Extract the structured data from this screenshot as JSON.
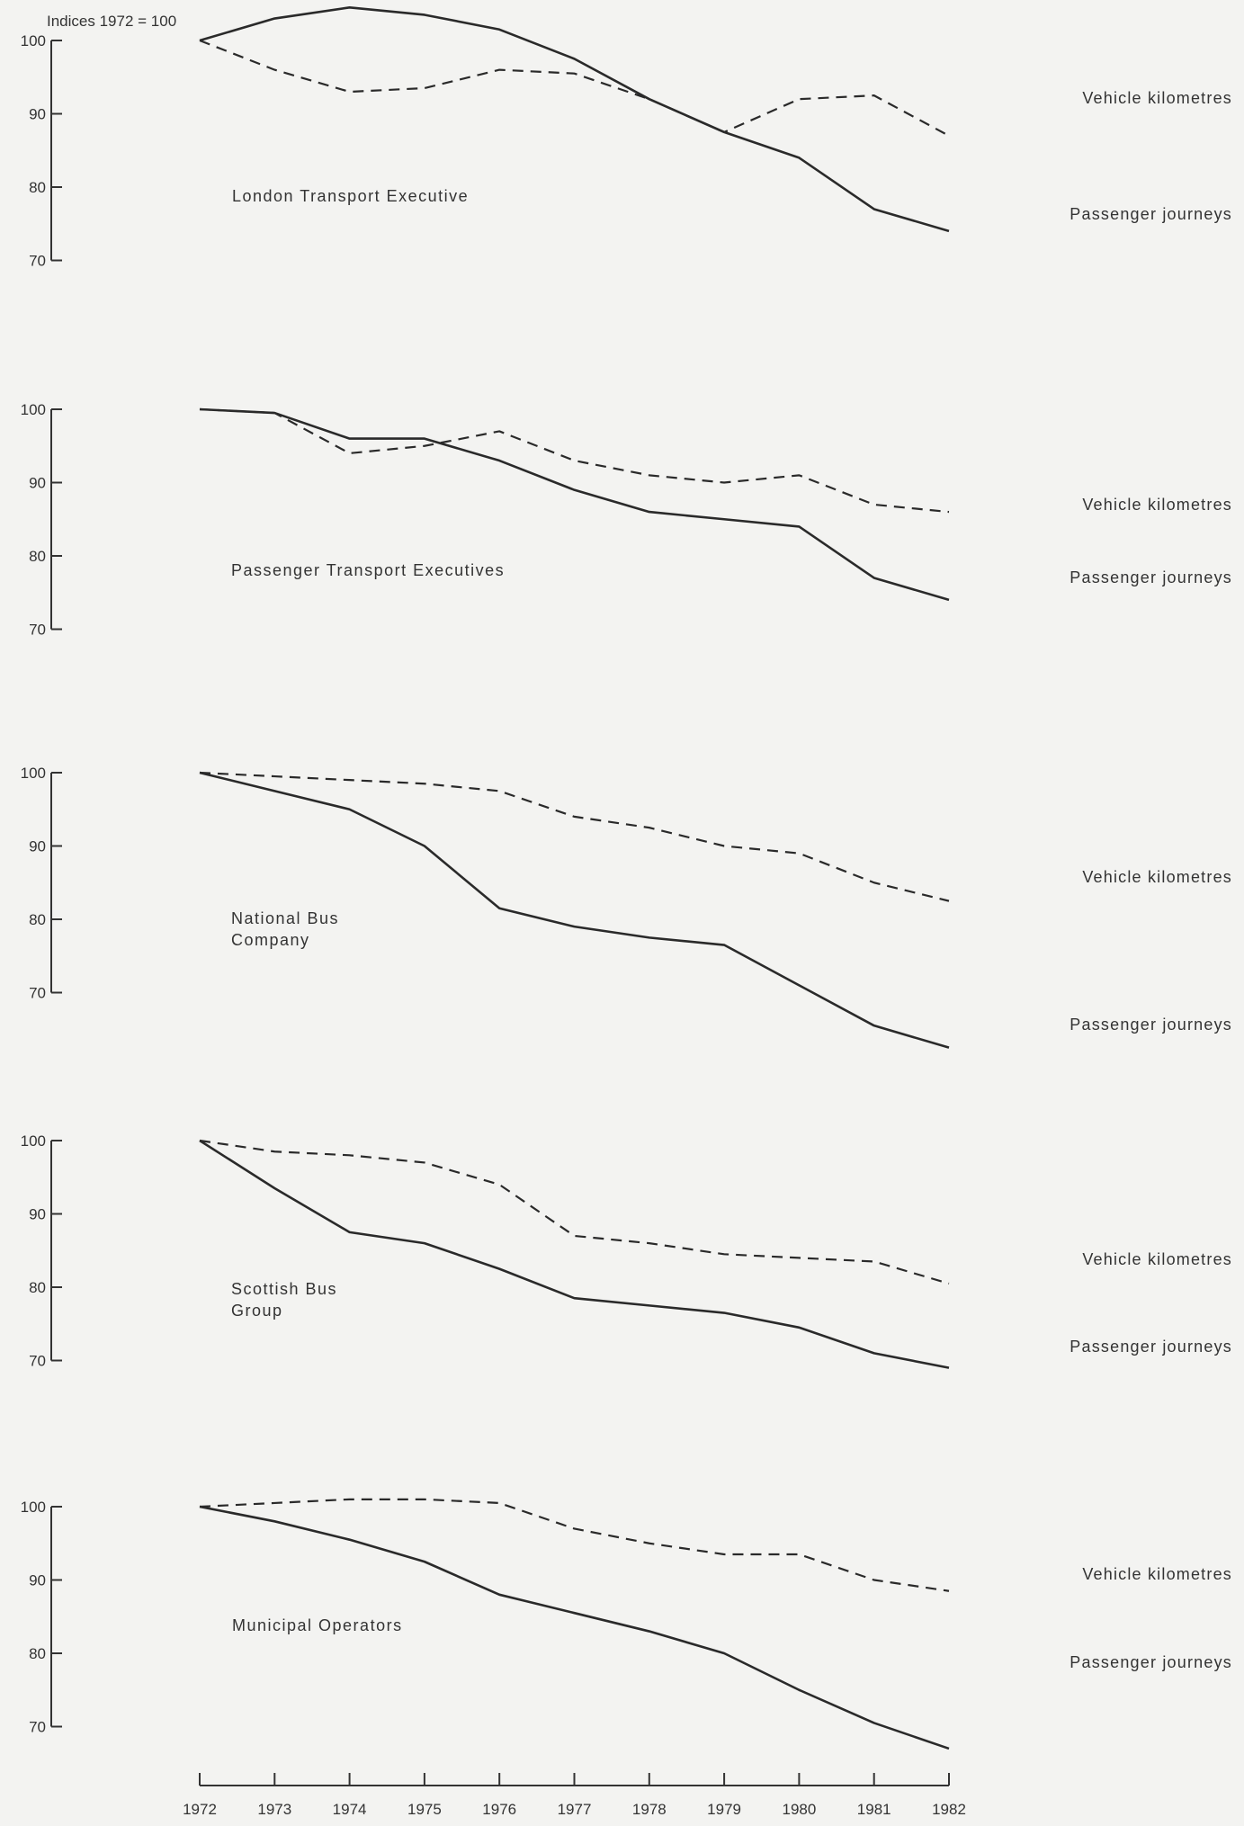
{
  "chart_data": {
    "type": "line",
    "axis_note": "Indices 1972 = 100",
    "x": [
      "1972",
      "1973",
      "1974",
      "1975",
      "1976",
      "1977",
      "1978",
      "1979",
      "1980",
      "1981",
      "1982"
    ],
    "x_tick_labels": [
      "1972",
      "1973",
      "1974",
      "1975",
      "1976",
      "1977",
      "1978",
      "1979",
      "1980",
      "1981",
      "1982"
    ],
    "ylim": [
      70,
      100
    ],
    "y_ticks": [
      100,
      90,
      80,
      70
    ],
    "y_tick_labels": [
      "100",
      "90",
      "80",
      "70"
    ],
    "grid": false,
    "panels": [
      {
        "title": [
          "London Transport Executive"
        ],
        "series": [
          {
            "name": "Vehicle kilometres",
            "style": "dashed",
            "values": [
              100,
              96,
              93,
              93.5,
              96,
              95.5,
              92,
              87.5,
              92,
              92.5,
              87
            ]
          },
          {
            "name": "Passenger journeys",
            "style": "solid",
            "values": [
              100,
              103,
              104.5,
              103.5,
              101.5,
              97.5,
              92,
              87.5,
              84,
              77,
              74
            ]
          }
        ]
      },
      {
        "title": [
          "Passenger Transport Executives"
        ],
        "series": [
          {
            "name": "Vehicle kilometres",
            "style": "dashed",
            "values": [
              100,
              99.5,
              94,
              95,
              97,
              93,
              91,
              90,
              91,
              87,
              86
            ]
          },
          {
            "name": "Passenger journeys",
            "style": "solid",
            "values": [
              100,
              99.5,
              96,
              96,
              93,
              89,
              86,
              85,
              84,
              77,
              74
            ]
          }
        ]
      },
      {
        "title": [
          "National Bus",
          "Company"
        ],
        "series": [
          {
            "name": "Vehicle kilometres",
            "style": "dashed",
            "values": [
              100,
              99.5,
              99,
              98.5,
              97.5,
              94,
              92.5,
              90,
              89,
              85,
              82.5
            ]
          },
          {
            "name": "Passenger journeys",
            "style": "solid",
            "values": [
              100,
              97.5,
              95,
              90,
              81.5,
              79,
              77.5,
              76.5,
              71,
              65.5,
              62.5
            ]
          }
        ]
      },
      {
        "title": [
          "Scottish Bus",
          "Group"
        ],
        "series": [
          {
            "name": "Vehicle kilometres",
            "style": "dashed",
            "values": [
              100,
              98.5,
              98,
              97,
              94,
              87,
              86,
              84.5,
              84,
              83.5,
              80.5
            ]
          },
          {
            "name": "Passenger journeys",
            "style": "solid",
            "values": [
              100,
              93.5,
              87.5,
              86,
              82.5,
              78.5,
              77.5,
              76.5,
              74.5,
              71,
              69
            ]
          }
        ]
      },
      {
        "title": [
          "Municipal Operators"
        ],
        "series": [
          {
            "name": "Vehicle kilometres",
            "style": "dashed",
            "values": [
              100,
              100.5,
              101,
              101,
              100.5,
              97,
              95,
              93.5,
              93.5,
              90,
              88.5
            ]
          },
          {
            "name": "Passenger journeys",
            "style": "solid",
            "values": [
              100,
              98,
              95.5,
              92.5,
              88,
              85.5,
              83,
              80,
              75,
              70.5,
              67
            ]
          }
        ]
      }
    ]
  }
}
